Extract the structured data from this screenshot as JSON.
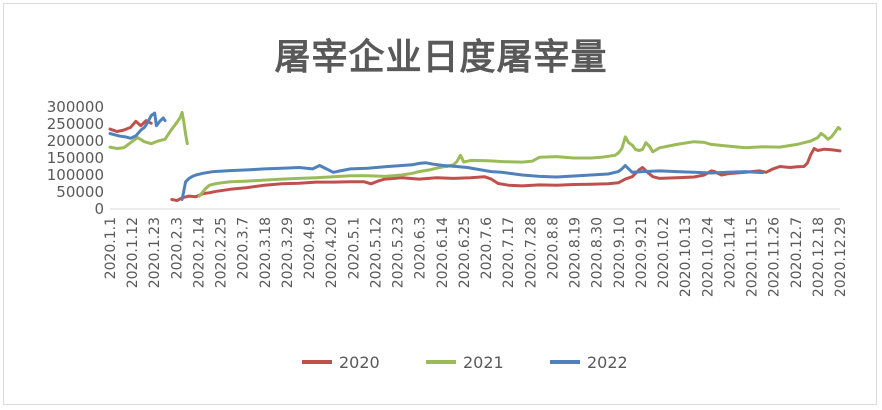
{
  "chart_data": {
    "type": "line",
    "title": "屠宰企业日度屠宰量",
    "ylim": [
      0,
      300000
    ],
    "y_ticks": [
      "0",
      "50000",
      "100000",
      "150000",
      "200000",
      "250000",
      "300000"
    ],
    "x_ticks": [
      "2020.1.1",
      "2020.1.12",
      "2020.1.23",
      "2020.2.3",
      "2020.2.14",
      "2020.2.25",
      "2020.3.7",
      "2020.3.18",
      "2020.3.29",
      "2020.4.9",
      "2020.4.20",
      "2020.5.1",
      "2020.5.12",
      "2020.5.23",
      "2020.6.3",
      "2020.6.14",
      "2020.6.25",
      "2020.7.6",
      "2020.7.17",
      "2020.7.28",
      "2020.8.8",
      "2020.8.19",
      "2020.8.30",
      "2020.9.10",
      "2020.9.21",
      "2020.10.2",
      "2020.10.13",
      "2020.10.24",
      "2020.11.4",
      "2020.11.15",
      "2020.11.26",
      "2020.12.7",
      "2020.12.18",
      "2020.12.29"
    ],
    "legend_position": "bottom",
    "grid": false,
    "series": [
      {
        "name": "2020",
        "color": "#c0504d",
        "segments": [
          [
            [
              0,
              235000
            ],
            [
              4,
              228000
            ],
            [
              8,
              232000
            ],
            [
              12,
              240000
            ],
            [
              15,
              258000
            ],
            [
              18,
              245000
            ],
            [
              21,
              260000
            ],
            [
              24,
              252000
            ]
          ],
          [
            [
              36,
              28000
            ],
            [
              39,
              25000
            ],
            [
              42,
              33000
            ],
            [
              46,
              38000
            ],
            [
              50,
              36000
            ],
            [
              54,
              45000
            ],
            [
              58,
              48000
            ],
            [
              62,
              52000
            ],
            [
              70,
              58000
            ],
            [
              80,
              63000
            ],
            [
              90,
              70000
            ],
            [
              100,
              74000
            ],
            [
              110,
              76000
            ],
            [
              120,
              79000
            ],
            [
              130,
              79000
            ],
            [
              140,
              80000
            ],
            [
              148,
              80000
            ],
            [
              152,
              74000
            ],
            [
              156,
              82000
            ],
            [
              160,
              88000
            ],
            [
              170,
              92000
            ],
            [
              180,
              88000
            ],
            [
              190,
              92000
            ],
            [
              200,
              90000
            ],
            [
              210,
              92000
            ],
            [
              218,
              95000
            ],
            [
              222,
              88000
            ],
            [
              226,
              75000
            ],
            [
              232,
              70000
            ],
            [
              240,
              68000
            ],
            [
              250,
              71000
            ],
            [
              260,
              70000
            ],
            [
              270,
              72000
            ],
            [
              280,
              73000
            ],
            [
              290,
              74000
            ],
            [
              296,
              77000
            ],
            [
              300,
              88000
            ],
            [
              304,
              95000
            ],
            [
              306,
              105000
            ],
            [
              308,
              115000
            ],
            [
              310,
              122000
            ],
            [
              313,
              108000
            ],
            [
              316,
              95000
            ],
            [
              320,
              90000
            ],
            [
              330,
              92000
            ],
            [
              340,
              94000
            ],
            [
              346,
              100000
            ],
            [
              350,
              112000
            ],
            [
              352,
              110000
            ],
            [
              356,
              100000
            ],
            [
              360,
              104000
            ],
            [
              370,
              108000
            ],
            [
              378,
              112000
            ],
            [
              382,
              108000
            ],
            [
              386,
              118000
            ],
            [
              390,
              125000
            ],
            [
              396,
              122000
            ],
            [
              400,
              124000
            ],
            [
              404,
              125000
            ],
            [
              406,
              135000
            ],
            [
              408,
              160000
            ],
            [
              410,
              178000
            ],
            [
              412,
              172000
            ],
            [
              416,
              176000
            ],
            [
              420,
              174000
            ],
            [
              425,
              171000
            ]
          ]
        ]
      },
      {
        "name": "2021",
        "color": "#9bbb59",
        "segments": [
          [
            [
              0,
              182000
            ],
            [
              4,
              178000
            ],
            [
              8,
              180000
            ],
            [
              12,
              195000
            ],
            [
              16,
              210000
            ],
            [
              20,
              198000
            ],
            [
              24,
              192000
            ],
            [
              28,
              200000
            ],
            [
              32,
              205000
            ],
            [
              36,
              235000
            ],
            [
              39,
              255000
            ],
            [
              41,
              270000
            ],
            [
              42,
              284000
            ],
            [
              43,
              255000
            ],
            [
              44,
              220000
            ],
            [
              45,
              192000
            ]
          ],
          [
            [
              52,
              38000
            ],
            [
              54,
              50000
            ],
            [
              56,
              62000
            ],
            [
              58,
              70000
            ],
            [
              62,
              75000
            ],
            [
              70,
              80000
            ],
            [
              80,
              82000
            ],
            [
              90,
              85000
            ],
            [
              100,
              88000
            ],
            [
              110,
              90000
            ],
            [
              120,
              92000
            ],
            [
              130,
              95000
            ],
            [
              140,
              98000
            ],
            [
              150,
              98000
            ],
            [
              160,
              96000
            ],
            [
              170,
              100000
            ],
            [
              176,
              105000
            ],
            [
              180,
              110000
            ],
            [
              186,
              115000
            ],
            [
              190,
              120000
            ],
            [
              194,
              124000
            ],
            [
              196,
              125000
            ],
            [
              198,
              128000
            ],
            [
              200,
              130000
            ],
            [
              202,
              140000
            ],
            [
              204,
              158000
            ],
            [
              206,
              138000
            ],
            [
              210,
              143000
            ],
            [
              220,
              142000
            ],
            [
              230,
              139000
            ],
            [
              240,
              138000
            ],
            [
              246,
              141000
            ],
            [
              250,
              152000
            ],
            [
              260,
              154000
            ],
            [
              270,
              150000
            ],
            [
              280,
              150000
            ],
            [
              286,
              152000
            ],
            [
              290,
              155000
            ],
            [
              294,
              158000
            ],
            [
              296,
              165000
            ],
            [
              298,
              178000
            ],
            [
              300,
              212000
            ],
            [
              302,
              195000
            ],
            [
              304,
              188000
            ],
            [
              306,
              175000
            ],
            [
              308,
              172000
            ],
            [
              310,
              175000
            ],
            [
              312,
              195000
            ],
            [
              314,
              185000
            ],
            [
              316,
              168000
            ],
            [
              320,
              180000
            ],
            [
              330,
              190000
            ],
            [
              340,
              198000
            ],
            [
              346,
              196000
            ],
            [
              350,
              190000
            ],
            [
              360,
              185000
            ],
            [
              370,
              180000
            ],
            [
              380,
              183000
            ],
            [
              390,
              182000
            ],
            [
              400,
              190000
            ],
            [
              404,
              195000
            ],
            [
              408,
              200000
            ],
            [
              412,
              210000
            ],
            [
              414,
              222000
            ],
            [
              416,
              215000
            ],
            [
              418,
              205000
            ],
            [
              420,
              212000
            ],
            [
              422,
              225000
            ],
            [
              424,
              240000
            ],
            [
              425,
              235000
            ]
          ]
        ]
      },
      {
        "name": "2022",
        "color": "#4f81bd",
        "segments": [
          [
            [
              0,
              222000
            ],
            [
              3,
              218000
            ],
            [
              6,
              214000
            ],
            [
              9,
              212000
            ],
            [
              12,
              208000
            ],
            [
              15,
              215000
            ],
            [
              18,
              232000
            ],
            [
              20,
              240000
            ],
            [
              22,
              255000
            ],
            [
              24,
              275000
            ],
            [
              26,
              282000
            ],
            [
              27,
              245000
            ],
            [
              29,
              258000
            ],
            [
              31,
              268000
            ],
            [
              32,
              260000
            ]
          ],
          [
            [
              42,
              28000
            ],
            [
              44,
              80000
            ],
            [
              46,
              90000
            ],
            [
              48,
              96000
            ],
            [
              50,
              100000
            ],
            [
              54,
              105000
            ],
            [
              60,
              110000
            ],
            [
              70,
              113000
            ],
            [
              80,
              115000
            ],
            [
              90,
              118000
            ],
            [
              100,
              120000
            ],
            [
              110,
              122000
            ],
            [
              118,
              118000
            ],
            [
              122,
              128000
            ],
            [
              126,
              118000
            ],
            [
              130,
              108000
            ],
            [
              134,
              112000
            ],
            [
              140,
              118000
            ],
            [
              150,
              120000
            ],
            [
              160,
              124000
            ],
            [
              170,
              128000
            ],
            [
              176,
              130000
            ],
            [
              180,
              134000
            ],
            [
              184,
              136000
            ],
            [
              188,
              132000
            ],
            [
              194,
              128000
            ],
            [
              200,
              126000
            ],
            [
              208,
              122000
            ],
            [
              216,
              115000
            ],
            [
              222,
              110000
            ],
            [
              228,
              108000
            ],
            [
              234,
              104000
            ],
            [
              240,
              100000
            ],
            [
              250,
              96000
            ],
            [
              260,
              94000
            ],
            [
              270,
              97000
            ],
            [
              280,
              100000
            ],
            [
              290,
              103000
            ],
            [
              296,
              110000
            ],
            [
              298,
              118000
            ],
            [
              300,
              128000
            ],
            [
              302,
              118000
            ],
            [
              304,
              108000
            ],
            [
              310,
              110000
            ],
            [
              320,
              112000
            ],
            [
              330,
              110000
            ],
            [
              340,
              108000
            ],
            [
              350,
              106000
            ],
            [
              360,
              108000
            ],
            [
              370,
              110000
            ],
            [
              376,
              108000
            ],
            [
              380,
              107000
            ]
          ]
        ]
      }
    ]
  }
}
